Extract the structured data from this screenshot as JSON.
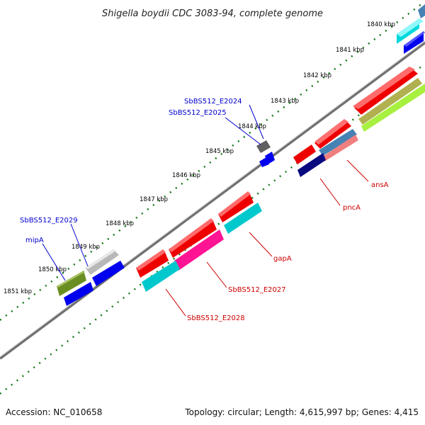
{
  "title": "Shigella boydii CDC 3083-94, complete genome",
  "footer": {
    "accession": "Accession: NC_010658",
    "topology": "Topology: circular; Length: 4,615,997 bp; Genes: 4,415"
  },
  "ticks": [
    "1840 kbp",
    "1841 kbp",
    "1842 kbp",
    "1843 kbp",
    "1844 kbp",
    "1845 kbp",
    "1846 kbp",
    "1847 kbp",
    "1848 kbp",
    "1849 kbp",
    "1850 kbp",
    "1851 kbp"
  ],
  "labels": {
    "blue": [
      "SbBS512_E2024",
      "SbBS512_E2025",
      "SbBS512_E2029",
      "mipA"
    ],
    "red": [
      "ansA",
      "pncA",
      "gapA",
      "SbBS512_E2027",
      "SbBS512_E2028"
    ]
  },
  "colors": {
    "red": "#ff0000",
    "cyan": "#00c8cc",
    "blue": "#0000ff",
    "navy": "#0a0a80",
    "magenta": "#ff1493",
    "olive": "#6b8e23",
    "gray": "#c0c0c0",
    "lime": "#adff2f",
    "steel": "#4682b4",
    "salmon": "#f08080",
    "label_blue": "#0000cc",
    "label_red": "#cc0000",
    "tick_green": "#006400"
  }
}
